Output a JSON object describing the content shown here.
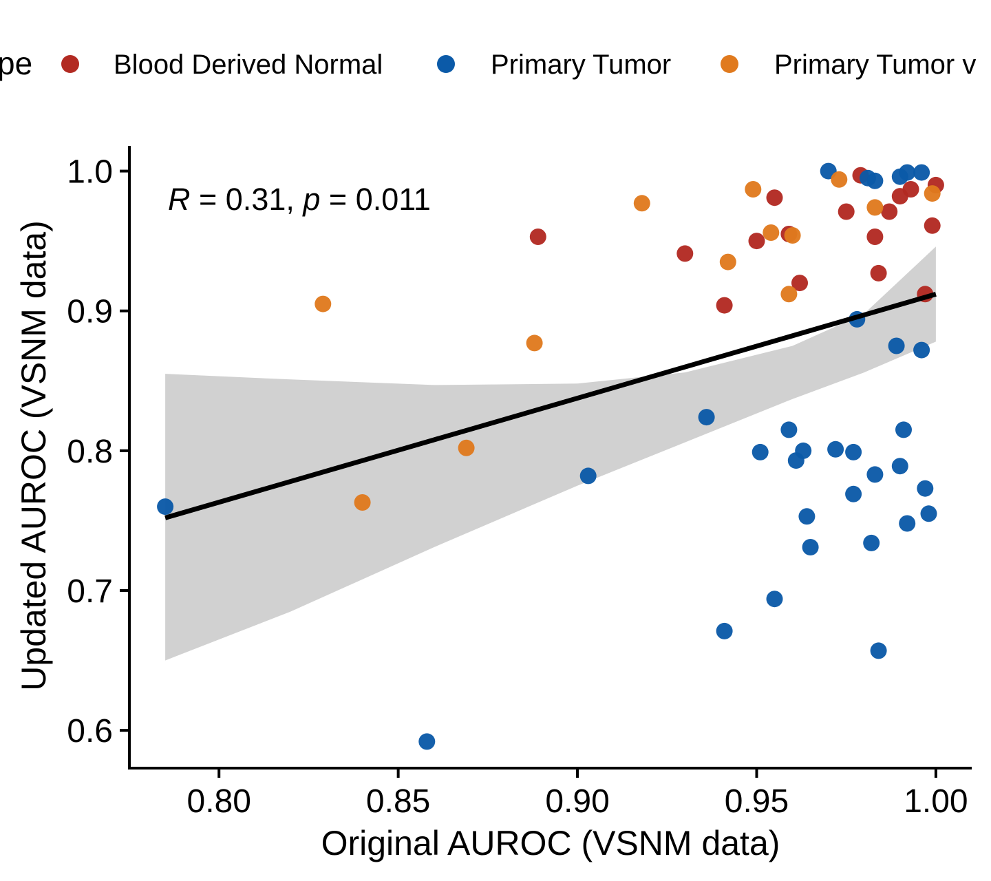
{
  "chart_data": {
    "type": "scatter",
    "annotation": {
      "R": "R",
      "eq1": " = 0.31, ",
      "p": "p",
      "eq2": " = 0.011"
    },
    "xlabel": "Original AUROC (VSNM data)",
    "ylabel": "Updated AUROC (VSNM data)",
    "xlim": [
      0.775,
      1.01
    ],
    "ylim": [
      0.573,
      1.018
    ],
    "xticks": [
      0.8,
      0.85,
      0.9,
      0.95,
      1.0
    ],
    "xtick_labels": [
      "0.80",
      "0.85",
      "0.90",
      "0.95",
      "1.00"
    ],
    "yticks": [
      0.6,
      0.7,
      0.8,
      0.9,
      1.0
    ],
    "ytick_labels": [
      "0.6",
      "0.7",
      "0.8",
      "0.9",
      "1.0"
    ],
    "grid": false,
    "legend": {
      "title": "pe",
      "position": "top",
      "entries": [
        {
          "label": "Blood Derived Normal",
          "color": "#b22a22"
        },
        {
          "label": "Primary Tumor",
          "color": "#0b5aa8"
        },
        {
          "label": "Primary Tumor v",
          "color": "#e07a1e"
        }
      ]
    },
    "regression": {
      "x0": 0.785,
      "y0": 0.752,
      "x1": 1.0,
      "y1": 0.912,
      "ci_band": [
        [
          0.785,
          0.65,
          0.855
        ],
        [
          0.82,
          0.685,
          0.851
        ],
        [
          0.86,
          0.731,
          0.847
        ],
        [
          0.9,
          0.775,
          0.848
        ],
        [
          0.93,
          0.806,
          0.856
        ],
        [
          0.96,
          0.837,
          0.875
        ],
        [
          0.98,
          0.856,
          0.898
        ],
        [
          1.0,
          0.878,
          0.946
        ]
      ],
      "line_color": "#000000",
      "band_color": "#cfcfcf"
    },
    "series": [
      {
        "name": "Blood Derived Normal",
        "color": "#b22a22",
        "points": [
          [
            0.889,
            0.953
          ],
          [
            0.93,
            0.941
          ],
          [
            0.941,
            0.904
          ],
          [
            0.95,
            0.95
          ],
          [
            0.955,
            0.981
          ],
          [
            0.959,
            0.955
          ],
          [
            0.962,
            0.92
          ],
          [
            0.975,
            0.971
          ],
          [
            0.979,
            0.997
          ],
          [
            0.983,
            0.953
          ],
          [
            0.984,
            0.927
          ],
          [
            0.987,
            0.971
          ],
          [
            0.99,
            0.982
          ],
          [
            0.993,
            0.987
          ],
          [
            0.997,
            0.912
          ],
          [
            0.999,
            0.961
          ],
          [
            1.0,
            0.99
          ]
        ]
      },
      {
        "name": "Primary Tumor",
        "color": "#0b5aa8",
        "points": [
          [
            0.785,
            0.76
          ],
          [
            0.858,
            0.592
          ],
          [
            0.903,
            0.782
          ],
          [
            0.936,
            0.824
          ],
          [
            0.941,
            0.671
          ],
          [
            0.951,
            0.799
          ],
          [
            0.955,
            0.694
          ],
          [
            0.959,
            0.815
          ],
          [
            0.961,
            0.793
          ],
          [
            0.963,
            0.8
          ],
          [
            0.964,
            0.753
          ],
          [
            0.965,
            0.731
          ],
          [
            0.97,
            1.0
          ],
          [
            0.972,
            0.801
          ],
          [
            0.977,
            0.769
          ],
          [
            0.977,
            0.799
          ],
          [
            0.978,
            0.894
          ],
          [
            0.981,
            0.995
          ],
          [
            0.982,
            0.734
          ],
          [
            0.983,
            0.783
          ],
          [
            0.983,
            0.993
          ],
          [
            0.984,
            0.657
          ],
          [
            0.989,
            0.875
          ],
          [
            0.99,
            0.996
          ],
          [
            0.99,
            0.789
          ],
          [
            0.991,
            0.815
          ],
          [
            0.992,
            0.748
          ],
          [
            0.992,
            0.999
          ],
          [
            0.996,
            0.872
          ],
          [
            0.996,
            0.999
          ],
          [
            0.997,
            0.773
          ],
          [
            0.998,
            0.755
          ]
        ]
      },
      {
        "name": "Primary Tumor v",
        "color": "#e07a1e",
        "points": [
          [
            0.829,
            0.905
          ],
          [
            0.84,
            0.763
          ],
          [
            0.869,
            0.802
          ],
          [
            0.888,
            0.877
          ],
          [
            0.918,
            0.977
          ],
          [
            0.942,
            0.935
          ],
          [
            0.949,
            0.987
          ],
          [
            0.954,
            0.956
          ],
          [
            0.959,
            0.912
          ],
          [
            0.96,
            0.954
          ],
          [
            0.973,
            0.994
          ],
          [
            0.983,
            0.974
          ],
          [
            0.999,
            0.984
          ]
        ]
      }
    ]
  }
}
